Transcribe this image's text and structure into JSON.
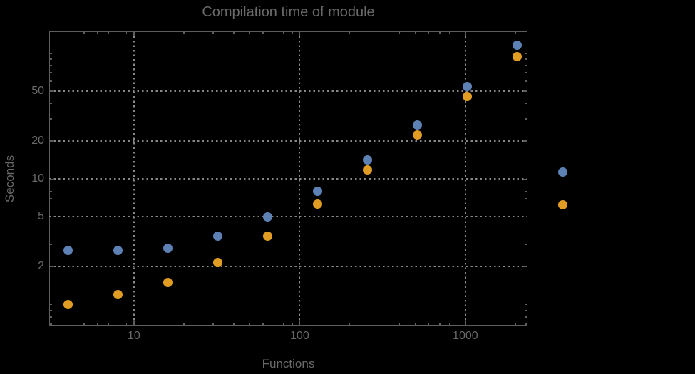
{
  "background_color": "#000000",
  "text_color": "#696969",
  "frame_color": "#5e5e5e",
  "grid_color": "#878787",
  "chart_data": {
    "type": "scatter",
    "title": "Compilation time of module",
    "xlabel": "Functions",
    "ylabel": "Seconds",
    "log_x": true,
    "log_y": true,
    "grid": "dotted lines at labeled ticks, both axes",
    "x_range": [
      3.08,
      2370
    ],
    "y_range": [
      0.68,
      149
    ],
    "x_ticks": [
      10,
      100,
      1000
    ],
    "y_ticks": [
      2,
      5,
      10,
      20,
      50
    ],
    "x": [
      4,
      8,
      16,
      32,
      64,
      128,
      256,
      512,
      1024,
      2048
    ],
    "series": [
      {
        "label": "",
        "marker": "disk",
        "color": "#5e81b5",
        "values": [
          2.7,
          2.7,
          2.8,
          3.5,
          5.0,
          8.0,
          14.2,
          26.7,
          54.5,
          116
        ]
      },
      {
        "label": "",
        "marker": "disk",
        "color": "#e19c24",
        "values": [
          1.0,
          1.2,
          1.5,
          2.15,
          3.5,
          6.3,
          11.7,
          22.2,
          45.4,
          94
        ]
      }
    ],
    "legend": {
      "position": "right-outside",
      "markers": [
        {
          "color": "#5e81b5"
        },
        {
          "color": "#e19c24"
        }
      ]
    }
  }
}
